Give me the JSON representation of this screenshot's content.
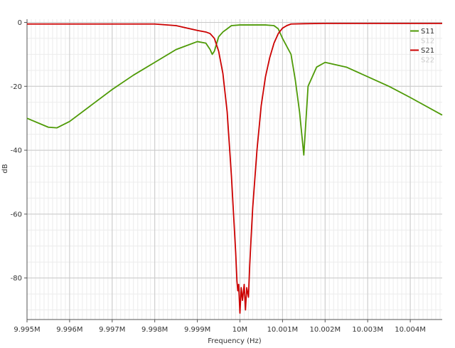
{
  "chart_data": {
    "type": "line",
    "xlabel": "Frequency (Hz)",
    "ylabel": "dB",
    "xlim": [
      9.995,
      10.00475
    ],
    "ylim": [
      -93,
      1
    ],
    "x_ticks": [
      9.995,
      9.996,
      9.997,
      9.998,
      9.999,
      10.0,
      10.001,
      10.002,
      10.003,
      10.004
    ],
    "x_tick_labels": [
      "9.995M",
      "9.996M",
      "9.997M",
      "9.998M",
      "9.999M",
      "10M",
      "10.001M",
      "10.002M",
      "10.003M",
      "10.004M"
    ],
    "y_ticks": [
      0,
      -20,
      -40,
      -60,
      -80
    ],
    "y_tick_labels": [
      "0",
      "-20",
      "-40",
      "-60",
      "-80"
    ],
    "grid": true,
    "legend_position": "top-right",
    "legend": [
      {
        "name": "S11",
        "color": "#4e9a06",
        "active": true
      },
      {
        "name": "S12",
        "color": "#cccccc",
        "active": false
      },
      {
        "name": "S21",
        "color": "#cc0000",
        "active": true
      },
      {
        "name": "S22",
        "color": "#cccccc",
        "active": false
      }
    ],
    "series": [
      {
        "name": "S11",
        "color": "#4e9a06",
        "x": [
          9.995,
          9.9955,
          9.9957,
          9.996,
          9.9965,
          9.997,
          9.9975,
          9.998,
          9.9985,
          9.999,
          9.9992,
          9.9993,
          9.99935,
          9.9994,
          9.9995,
          9.9996,
          9.9997,
          9.9998,
          10.0,
          10.0003,
          10.0006,
          10.0008,
          10.0009,
          10.001,
          10.0012,
          10.0013,
          10.0014,
          10.0015,
          10.0016,
          10.0018,
          10.002,
          10.0025,
          10.003,
          10.0035,
          10.004,
          10.00475
        ],
        "y": [
          -30,
          -32.8,
          -33,
          -31,
          -26,
          -21,
          -16.5,
          -12.5,
          -8.5,
          -6,
          -6.5,
          -8.5,
          -10,
          -9,
          -4.5,
          -3,
          -2,
          -1,
          -0.8,
          -0.8,
          -0.8,
          -1,
          -2,
          -5,
          -10,
          -18,
          -28,
          -41.5,
          -20,
          -14,
          -12.5,
          -14,
          -17,
          -20,
          -23.5,
          -29
        ]
      },
      {
        "name": "S21",
        "color": "#cc0000",
        "x": [
          9.995,
          9.996,
          9.997,
          9.998,
          9.9985,
          9.999,
          9.9992,
          9.9993,
          9.9994,
          9.9995,
          9.9996,
          9.9997,
          9.9998,
          9.99985,
          9.9999,
          9.99993,
          9.99995,
          9.99997,
          10.0,
          10.00003,
          10.00006,
          10.0001,
          10.00013,
          10.00016,
          10.0002,
          10.00023,
          10.00026,
          10.0003,
          10.0004,
          10.0005,
          10.0006,
          10.0007,
          10.0008,
          10.0009,
          10.001,
          10.0011,
          10.0012,
          10.0015,
          10.002,
          10.003,
          10.004,
          10.00475
        ],
        "y": [
          -0.5,
          -0.5,
          -0.5,
          -0.5,
          -1,
          -2.5,
          -3,
          -3.5,
          -5,
          -9,
          -16,
          -28,
          -48,
          -60,
          -72,
          -81,
          -84,
          -82,
          -91,
          -83,
          -87,
          -82,
          -90,
          -83,
          -86,
          -76,
          -68,
          -58,
          -40,
          -26,
          -17,
          -11,
          -6.5,
          -3.5,
          -1.8,
          -1,
          -0.5,
          -0.4,
          -0.3,
          -0.3,
          -0.3,
          -0.3
        ]
      }
    ]
  }
}
